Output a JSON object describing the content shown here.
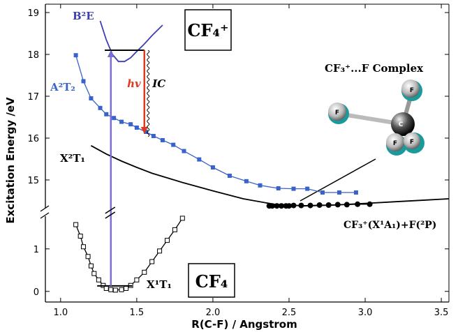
{
  "chart_data": [
    {
      "type": "line",
      "label": "CF₄⁺",
      "ylabel": "Excitation Energy /eV",
      "xlim": [
        0.9,
        3.55
      ],
      "ylim": [
        14.3,
        19.2
      ],
      "yticks": [
        15,
        16,
        17,
        18,
        19
      ],
      "series": [
        {
          "name": "B²E",
          "color": "#3b3fb0",
          "marker": "none",
          "x": [
            1.26,
            1.3,
            1.34,
            1.38,
            1.42,
            1.46,
            1.5,
            1.55,
            1.6,
            1.67
          ],
          "values": [
            18.8,
            18.35,
            18.0,
            17.83,
            17.83,
            17.92,
            18.07,
            18.25,
            18.45,
            18.7
          ]
        },
        {
          "name": "A²T₂",
          "color": "#3a62cc",
          "marker": "square",
          "x": [
            1.1,
            1.15,
            1.2,
            1.26,
            1.3,
            1.35,
            1.4,
            1.46,
            1.5,
            1.56,
            1.61,
            1.67,
            1.74,
            1.81,
            1.91,
            2.0,
            2.11,
            2.22,
            2.31,
            2.43,
            2.53,
            2.62,
            2.72,
            2.83,
            2.94
          ],
          "values": [
            17.98,
            17.36,
            16.95,
            16.72,
            16.57,
            16.48,
            16.39,
            16.33,
            16.25,
            16.15,
            16.05,
            15.95,
            15.84,
            15.69,
            15.49,
            15.3,
            15.1,
            14.97,
            14.87,
            14.8,
            14.79,
            14.79,
            14.7,
            14.7,
            14.7
          ]
        },
        {
          "name": "X²T₁",
          "color": "#000000",
          "marker": "none",
          "x": [
            1.2,
            1.3,
            1.4,
            1.5,
            1.6,
            1.8,
            2.0,
            2.2,
            2.4,
            2.6,
            2.8,
            3.0,
            3.2,
            3.4,
            3.55
          ],
          "values": [
            15.82,
            15.62,
            15.45,
            15.3,
            15.16,
            14.94,
            14.74,
            14.55,
            14.42,
            14.38,
            14.4,
            14.44,
            14.48,
            14.52,
            14.55
          ]
        },
        {
          "name": "CF₃⁺(X¹A₁)+F(²P)",
          "color": "#000000",
          "marker": "circle",
          "x": [
            2.37,
            2.39,
            2.42,
            2.45,
            2.48,
            2.5,
            2.53,
            2.58,
            2.64,
            2.7,
            2.76,
            2.82,
            2.88,
            2.95,
            3.03
          ],
          "values": [
            14.38,
            14.38,
            14.38,
            14.38,
            14.38,
            14.38,
            14.39,
            14.39,
            14.39,
            14.4,
            14.4,
            14.41,
            14.41,
            14.42,
            14.42
          ]
        }
      ],
      "level": {
        "y": 18.1,
        "x": [
          1.29,
          1.55
        ]
      },
      "transitions": [
        {
          "label": "hv",
          "x": 1.55,
          "from": 18.1,
          "to": 16.1,
          "color": "#e03a1e"
        },
        {
          "label": "IC",
          "x": 1.575,
          "from": 18.1,
          "to": 16.1,
          "color": "#000000"
        }
      ],
      "annotations": {
        "complex": "CF₃⁺...F Complex",
        "atoms": [
          "F",
          "F",
          "C",
          "F",
          "F"
        ]
      }
    },
    {
      "type": "line",
      "label": "CF₄",
      "xlabel": "R(C-F) / Angstrom",
      "xlim": [
        0.9,
        3.55
      ],
      "ylim": [
        -0.25,
        1.85
      ],
      "yticks": [
        0,
        1
      ],
      "xticks": [
        {
          "value": 1,
          "label": "1.0"
        },
        1.5,
        {
          "value": 2,
          "label": "2.0"
        },
        2.5,
        {
          "value": 3,
          "label": "3.0"
        },
        3.5
      ],
      "series": [
        {
          "name": "X¹T₁",
          "color": "#000000",
          "marker": "open-square",
          "x": [
            1.1,
            1.13,
            1.15,
            1.18,
            1.2,
            1.22,
            1.25,
            1.28,
            1.3,
            1.33,
            1.36,
            1.4,
            1.43,
            1.46,
            1.5,
            1.55,
            1.6,
            1.65,
            1.7,
            1.75,
            1.8
          ],
          "values": [
            1.57,
            1.3,
            1.05,
            0.82,
            0.6,
            0.42,
            0.27,
            0.14,
            0.07,
            0.04,
            0.03,
            0.04,
            0.07,
            0.14,
            0.27,
            0.45,
            0.7,
            0.95,
            1.2,
            1.45,
            1.72
          ]
        }
      ],
      "level": {
        "y": 0.13,
        "x": [
          1.24,
          1.47
        ]
      },
      "excitation": {
        "x": 1.33,
        "from": 0.13,
        "to": 18.1,
        "color": "#7a6fd0"
      }
    }
  ]
}
